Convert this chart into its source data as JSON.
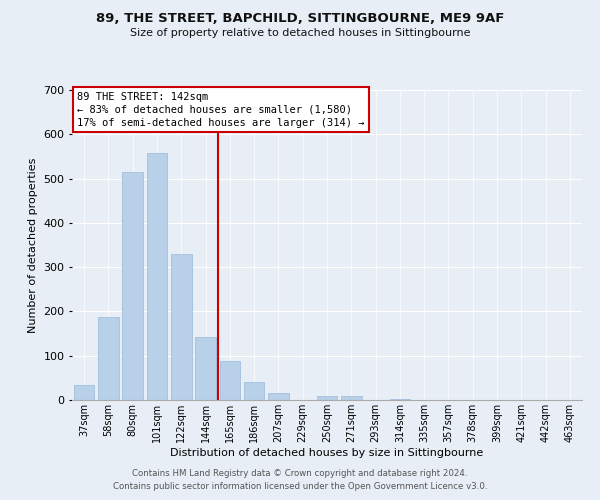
{
  "title": "89, THE STREET, BAPCHILD, SITTINGBOURNE, ME9 9AF",
  "subtitle": "Size of property relative to detached houses in Sittingbourne",
  "xlabel": "Distribution of detached houses by size in Sittingbourne",
  "ylabel": "Number of detached properties",
  "bar_color": "#b8d0e8",
  "bar_edge_color": "#9ab8d8",
  "vline_color": "#cc0000",
  "categories": [
    "37sqm",
    "58sqm",
    "80sqm",
    "101sqm",
    "122sqm",
    "144sqm",
    "165sqm",
    "186sqm",
    "207sqm",
    "229sqm",
    "250sqm",
    "271sqm",
    "293sqm",
    "314sqm",
    "335sqm",
    "357sqm",
    "378sqm",
    "399sqm",
    "421sqm",
    "442sqm",
    "463sqm"
  ],
  "values": [
    33,
    187,
    515,
    557,
    330,
    143,
    87,
    41,
    15,
    0,
    9,
    10,
    0,
    3,
    0,
    0,
    0,
    0,
    0,
    0,
    0
  ],
  "ylim": [
    0,
    700
  ],
  "yticks": [
    0,
    100,
    200,
    300,
    400,
    500,
    600,
    700
  ],
  "annotation_title": "89 THE STREET: 142sqm",
  "annotation_line1": "← 83% of detached houses are smaller (1,580)",
  "annotation_line2": "17% of semi-detached houses are larger (314) →",
  "annotation_box_facecolor": "#ffffff",
  "annotation_box_edgecolor": "#cc0000",
  "footer_line1": "Contains HM Land Registry data © Crown copyright and database right 2024.",
  "footer_line2": "Contains public sector information licensed under the Open Government Licence v3.0.",
  "background_color": "#e8eef5",
  "grid_color": "#ffffff",
  "vline_bar_index": 5.5
}
